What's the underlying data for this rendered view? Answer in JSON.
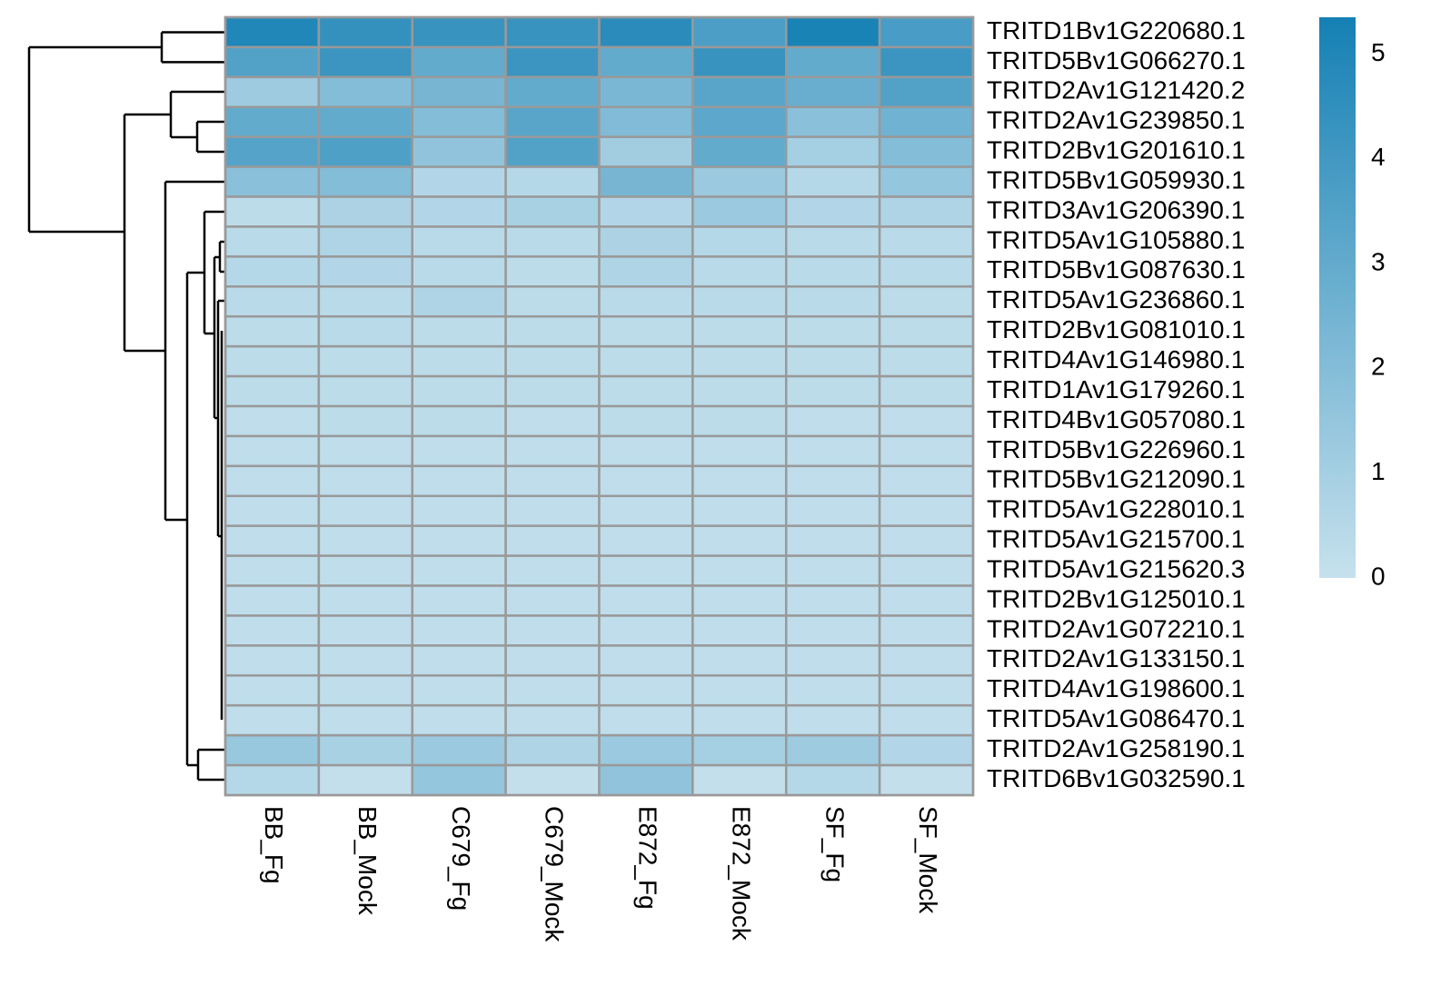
{
  "chart_data": {
    "type": "heatmap",
    "columns": [
      "BB_Fg",
      "BB_Mock",
      "C679_Fg",
      "C679_Mock",
      "E872_Fg",
      "E872_Mock",
      "SF_Fg",
      "SF_Mock"
    ],
    "rows": [
      "TRITD1Bv1G220680.1",
      "TRITD5Bv1G066270.1",
      "TRITD2Av1G121420.2",
      "TRITD2Av1G239850.1",
      "TRITD2Bv1G201610.1",
      "TRITD5Bv1G059930.1",
      "TRITD3Av1G206390.1",
      "TRITD5Av1G105880.1",
      "TRITD5Bv1G087630.1",
      "TRITD5Av1G236860.1",
      "TRITD2Bv1G081010.1",
      "TRITD4Av1G146980.1",
      "TRITD1Av1G179260.1",
      "TRITD4Bv1G057080.1",
      "TRITD5Bv1G226960.1",
      "TRITD5Bv1G212090.1",
      "TRITD5Av1G228010.1",
      "TRITD5Av1G215700.1",
      "TRITD5Av1G215620.3",
      "TRITD2Bv1G125010.1",
      "TRITD2Av1G072210.1",
      "TRITD2Av1G133150.1",
      "TRITD4Av1G198600.1",
      "TRITD5Av1G086470.1",
      "TRITD2Av1G258190.1",
      "TRITD6Bv1G032590.1"
    ],
    "values": [
      [
        5.0,
        4.4,
        4.3,
        4.3,
        4.7,
        3.7,
        5.2,
        3.8
      ],
      [
        3.5,
        4.2,
        3.0,
        4.2,
        3.0,
        4.3,
        3.0,
        4.2
      ],
      [
        1.2,
        2.0,
        2.4,
        3.0,
        2.3,
        3.3,
        2.8,
        3.5
      ],
      [
        3.0,
        3.0,
        2.0,
        3.3,
        2.1,
        3.2,
        1.8,
        2.6
      ],
      [
        3.4,
        3.6,
        1.6,
        3.5,
        1.1,
        3.0,
        1.0,
        2.0
      ],
      [
        1.8,
        2.0,
        0.6,
        0.5,
        2.4,
        1.3,
        0.5,
        1.5
      ],
      [
        0.3,
        0.8,
        0.6,
        0.9,
        0.6,
        1.3,
        0.6,
        0.7
      ],
      [
        0.4,
        0.7,
        0.4,
        0.4,
        0.8,
        0.5,
        0.4,
        0.4
      ],
      [
        0.5,
        0.6,
        0.4,
        0.3,
        0.7,
        0.4,
        0.4,
        0.4
      ],
      [
        0.4,
        0.4,
        0.7,
        0.3,
        0.4,
        0.4,
        0.4,
        0.3
      ],
      [
        0.3,
        0.4,
        0.3,
        0.3,
        0.3,
        0.3,
        0.3,
        0.3
      ],
      [
        0.3,
        0.3,
        0.3,
        0.3,
        0.3,
        0.3,
        0.3,
        0.3
      ],
      [
        0.3,
        0.3,
        0.3,
        0.3,
        0.3,
        0.3,
        0.3,
        0.3
      ],
      [
        0.2,
        0.3,
        0.3,
        0.2,
        0.3,
        0.3,
        0.2,
        0.2
      ],
      [
        0.2,
        0.2,
        0.2,
        0.2,
        0.2,
        0.2,
        0.2,
        0.2
      ],
      [
        0.2,
        0.2,
        0.2,
        0.2,
        0.2,
        0.2,
        0.2,
        0.2
      ],
      [
        0.2,
        0.2,
        0.2,
        0.2,
        0.2,
        0.2,
        0.2,
        0.2
      ],
      [
        0.2,
        0.2,
        0.2,
        0.2,
        0.2,
        0.2,
        0.2,
        0.2
      ],
      [
        0.2,
        0.2,
        0.2,
        0.2,
        0.2,
        0.2,
        0.2,
        0.2
      ],
      [
        0.2,
        0.2,
        0.2,
        0.2,
        0.2,
        0.2,
        0.2,
        0.2
      ],
      [
        0.2,
        0.2,
        0.2,
        0.2,
        0.2,
        0.2,
        0.2,
        0.2
      ],
      [
        0.2,
        0.2,
        0.2,
        0.2,
        0.2,
        0.2,
        0.2,
        0.2
      ],
      [
        0.2,
        0.2,
        0.2,
        0.2,
        0.2,
        0.2,
        0.2,
        0.2
      ],
      [
        0.2,
        0.2,
        0.2,
        0.2,
        0.2,
        0.2,
        0.2,
        0.2
      ],
      [
        1.4,
        0.9,
        1.3,
        0.7,
        1.3,
        1.0,
        1.2,
        0.6
      ],
      [
        0.5,
        0.1,
        1.5,
        0.1,
        1.6,
        0.1,
        0.5,
        0.1
      ]
    ],
    "colorscale": {
      "low": "#c6e1ed",
      "high": "#1580b4"
    },
    "zlim": [
      0,
      5.35
    ],
    "zticks": [
      0,
      1,
      2,
      3,
      4,
      5
    ]
  }
}
